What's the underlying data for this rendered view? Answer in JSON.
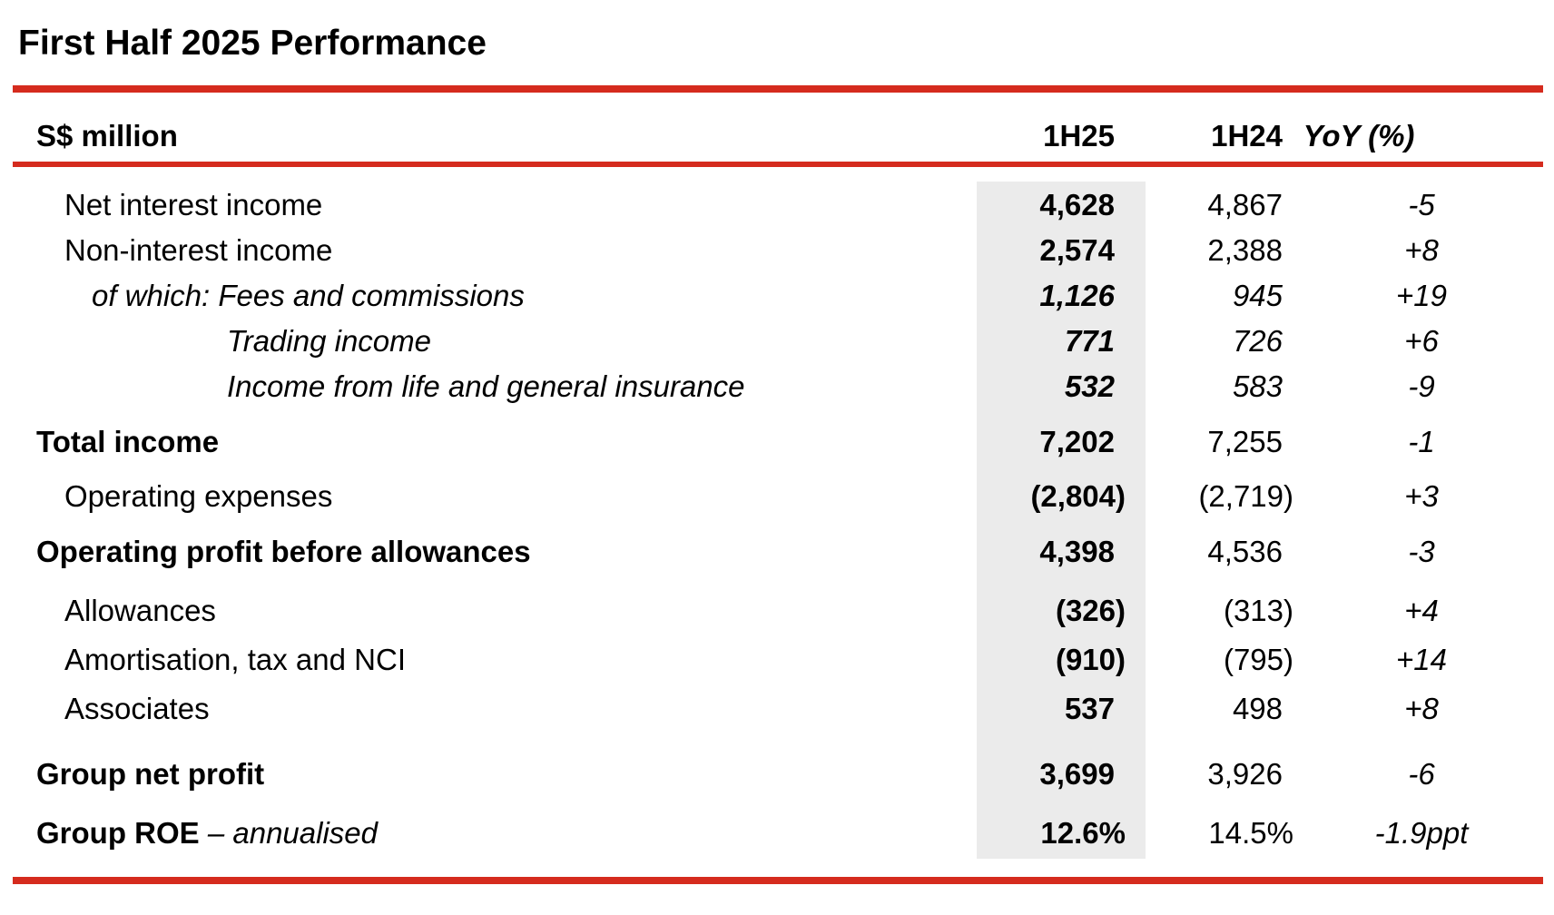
{
  "title": "First Half 2025 Performance",
  "header": {
    "label": "S$ million",
    "col1": "1H25",
    "col2": "1H24",
    "col3": "YoY (%)"
  },
  "rows": [
    {
      "label": "Net interest income",
      "label_extra": "",
      "col1": "4,628",
      "col2": "4,867",
      "col3": "-5"
    },
    {
      "label": "Non-interest income",
      "label_extra": "",
      "col1": "2,574",
      "col2": "2,388",
      "col3": "+8"
    },
    {
      "label": "of which: Fees and commissions",
      "label_extra": "",
      "col1": "1,126",
      "col2": "945",
      "col3": "+19"
    },
    {
      "label": "Trading income",
      "label_extra": "",
      "col1": "771",
      "col2": "726",
      "col3": "+6"
    },
    {
      "label": "Income from life and general insurance",
      "label_extra": "",
      "col1": "532",
      "col2": "583",
      "col3": "-9"
    },
    {
      "label": "Total income",
      "label_extra": "",
      "col1": "7,202",
      "col2": "7,255",
      "col3": "-1"
    },
    {
      "label": "Operating expenses",
      "label_extra": "",
      "col1": "(2,804)",
      "col2": "(2,719)",
      "col3": "+3"
    },
    {
      "label": "Operating profit before allowances",
      "label_extra": "",
      "col1": "4,398",
      "col2": "4,536",
      "col3": "-3"
    },
    {
      "label": "Allowances",
      "label_extra": "",
      "col1": "(326)",
      "col2": "(313)",
      "col3": "+4"
    },
    {
      "label": "Amortisation, tax and NCI",
      "label_extra": "",
      "col1": "(910)",
      "col2": "(795)",
      "col3": "+14"
    },
    {
      "label": "Associates",
      "label_extra": "",
      "col1": "537",
      "col2": "498",
      "col3": "+8"
    },
    {
      "label": "Group net profit",
      "label_extra": "",
      "col1": "3,699",
      "col2": "3,926",
      "col3": "-6"
    },
    {
      "label": "Group ROE",
      "label_extra": " – annualised",
      "col1": "12.6%",
      "col2": "14.5%",
      "col3": "-1.9ppt"
    }
  ],
  "colors": {
    "accent_rule": "#d52b1e",
    "highlight_column": "#ebebeb"
  }
}
